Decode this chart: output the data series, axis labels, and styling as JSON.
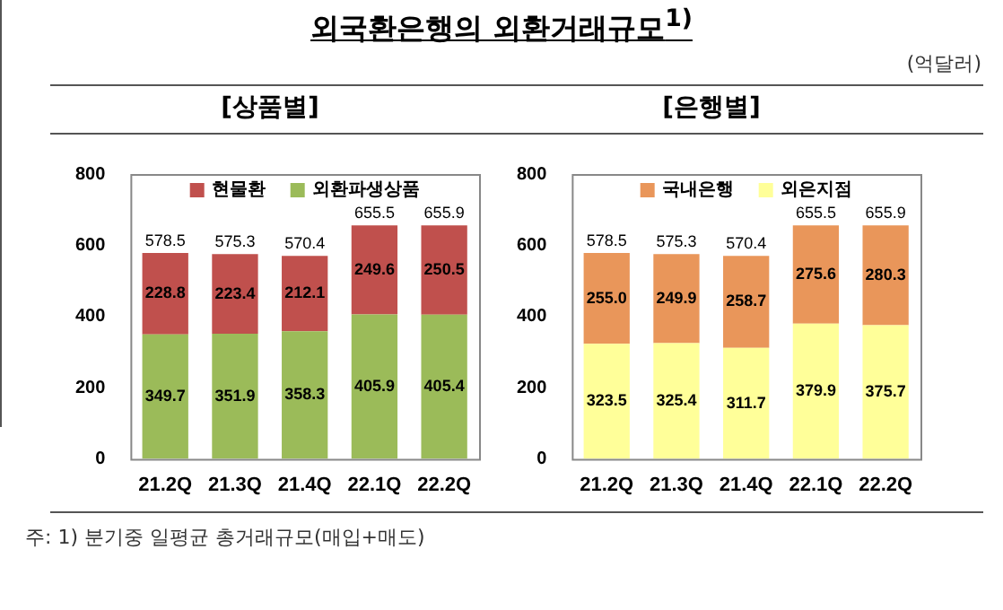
{
  "chart_data": [
    {
      "type": "bar",
      "title": "[상품별]",
      "stacked": true,
      "categories": [
        "21.2Q",
        "21.3Q",
        "21.4Q",
        "22.1Q",
        "22.2Q"
      ],
      "series": [
        {
          "name": "외환파생상품",
          "color": "#9bbb59",
          "values": [
            349.7,
            351.9,
            358.3,
            405.9,
            405.4
          ],
          "value_labels": [
            "349.7",
            "351.9",
            "358.3",
            "405.9",
            "405.4"
          ]
        },
        {
          "name": "현물환",
          "color": "#c0504d",
          "values": [
            228.8,
            223.4,
            212.1,
            249.6,
            250.5
          ],
          "value_labels": [
            "228.8",
            "223.4",
            "212.1",
            "249.6",
            "250.5"
          ]
        }
      ],
      "totals": [
        "578.5",
        "575.3",
        "570.4",
        "655.5",
        "655.9"
      ],
      "ylim": [
        0,
        800
      ],
      "yticks": [
        0,
        200,
        400,
        600,
        800
      ],
      "grid": false,
      "legend": "top",
      "annotations": [
        "외국환은행의  외환거래규모$^{1)}$",
        "주: 1) 분기중 일평균 총거래규모(매입+매도)"
      ]
    },
    {
      "type": "bar",
      "title": "[은행별]",
      "stacked": true,
      "categories": [
        "21.2Q",
        "21.3Q",
        "21.4Q",
        "22.1Q",
        "22.2Q"
      ],
      "series": [
        {
          "name": "외은지점",
          "color": "#ffff99",
          "values": [
            323.5,
            325.4,
            311.7,
            379.9,
            375.7
          ],
          "value_labels": [
            "323.5",
            "325.4",
            "311.7",
            "379.9",
            "375.7"
          ]
        },
        {
          "name": "국내은행",
          "color": "#e9965a",
          "values": [
            255.0,
            249.9,
            258.7,
            275.6,
            280.3
          ],
          "value_labels": [
            "255.0",
            "249.9",
            "258.7",
            "275.6",
            "280.3"
          ]
        }
      ],
      "totals": [
        "578.5",
        "575.3",
        "570.4",
        "655.5",
        "655.9"
      ],
      "ylim": [
        0,
        800
      ],
      "yticks": [
        0,
        200,
        400,
        600,
        800
      ],
      "grid": false,
      "legend": "top",
      "annotations": [
        "(억달러)"
      ]
    }
  ]
}
